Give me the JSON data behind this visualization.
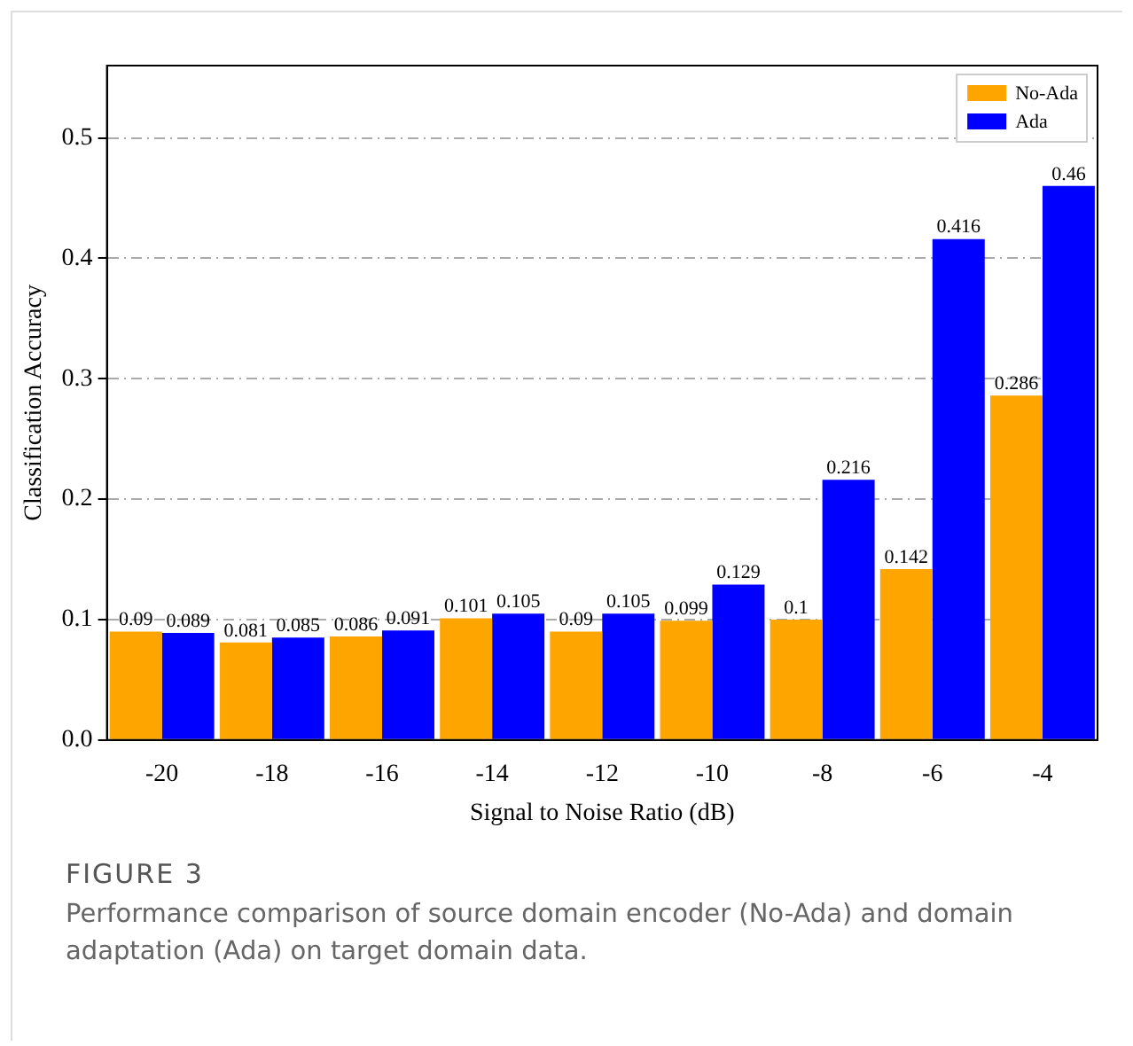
{
  "chart_data": {
    "type": "bar",
    "xlabel": "Signal to Noise Ratio (dB)",
    "ylabel": "Classification Accuracy",
    "categories": [
      "-20",
      "-18",
      "-16",
      "-14",
      "-12",
      "-10",
      "-8",
      "-6",
      "-4"
    ],
    "series": [
      {
        "name": "No-Ada",
        "color": "#ffa500",
        "values": [
          0.09,
          0.081,
          0.086,
          0.101,
          0.09,
          0.099,
          0.1,
          0.142,
          0.286
        ]
      },
      {
        "name": "Ada",
        "color": "#0000ff",
        "values": [
          0.089,
          0.085,
          0.091,
          0.105,
          0.105,
          0.129,
          0.216,
          0.416,
          0.46
        ]
      }
    ],
    "ylim": [
      0,
      0.56
    ],
    "yticks": [
      {
        "value": 0,
        "label": "0.0"
      },
      {
        "value": 0.1,
        "label": "0.1"
      },
      {
        "value": 0.2,
        "label": "0.2"
      },
      {
        "value": 0.3,
        "label": "0.3"
      },
      {
        "value": 0.4,
        "label": "0.4"
      },
      {
        "value": 0.5,
        "label": "0.5"
      }
    ],
    "grid": "y",
    "legend": "top right",
    "data_labels": true,
    "annotations": [
      "FIGURE 3",
      "Performance comparison of source domain encoder (No-Ada) and domain adaptation (Ada) on target domain data."
    ]
  }
}
